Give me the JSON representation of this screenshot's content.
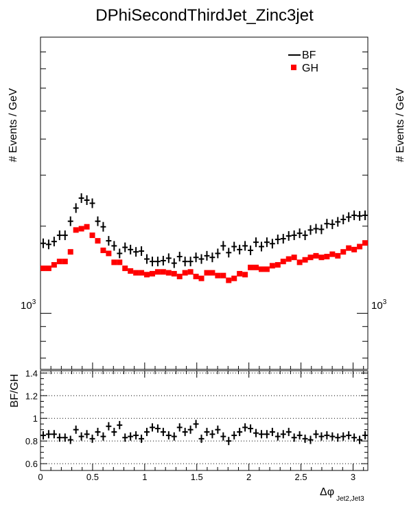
{
  "chart_data": [
    {
      "type": "scatter",
      "title": "DPhiSecondThirdJet_Zinc3jet",
      "ylabel": "# Events / GeV",
      "yscale": "log",
      "ylim": [
        640,
        9000
      ],
      "y_tick_label": "10",
      "y_tick_exp": "3",
      "legend_position": "top-right",
      "legend": [
        {
          "label": "BF",
          "marker": "cross",
          "color": "#000000"
        },
        {
          "label": "GH",
          "marker": "square",
          "color": "#ff0000"
        }
      ],
      "x": [
        0.0262,
        0.0785,
        0.1309,
        0.1833,
        0.2356,
        0.288,
        0.3403,
        0.3927,
        0.4451,
        0.4974,
        0.5498,
        0.6021,
        0.6545,
        0.7069,
        0.7592,
        0.8116,
        0.8639,
        0.9163,
        0.9687,
        1.021,
        1.0734,
        1.1257,
        1.1781,
        1.2305,
        1.2828,
        1.3352,
        1.3875,
        1.4399,
        1.4923,
        1.5446,
        1.597,
        1.6493,
        1.7017,
        1.7541,
        1.8064,
        1.8588,
        1.9111,
        1.9635,
        2.0159,
        2.0682,
        2.1206,
        2.1729,
        2.2253,
        2.2777,
        2.33,
        2.3824,
        2.4347,
        2.4871,
        2.5395,
        2.5918,
        2.6442,
        2.6965,
        2.7489,
        2.8013,
        2.8536,
        2.906,
        2.9583,
        3.0107,
        3.0631,
        3.1154
      ],
      "series": [
        {
          "name": "BF",
          "marker": "cross",
          "color": "#000000",
          "values": [
            1745,
            1730,
            1770,
            1860,
            1860,
            2080,
            2310,
            2500,
            2460,
            2400,
            2080,
            1990,
            1780,
            1710,
            1610,
            1690,
            1660,
            1630,
            1640,
            1540,
            1510,
            1510,
            1520,
            1550,
            1490,
            1570,
            1510,
            1510,
            1560,
            1540,
            1580,
            1560,
            1610,
            1710,
            1620,
            1700,
            1660,
            1710,
            1650,
            1760,
            1700,
            1760,
            1740,
            1800,
            1810,
            1850,
            1860,
            1890,
            1860,
            1940,
            1960,
            1950,
            2040,
            2030,
            2070,
            2110,
            2150,
            2180,
            2170,
            2180
          ]
        },
        {
          "name": "GH",
          "marker": "square",
          "color": "#ff0000",
          "values": [
            1430,
            1430,
            1470,
            1510,
            1510,
            1630,
            1940,
            1960,
            1990,
            1860,
            1780,
            1650,
            1610,
            1500,
            1500,
            1430,
            1400,
            1380,
            1380,
            1360,
            1370,
            1390,
            1390,
            1380,
            1370,
            1340,
            1380,
            1390,
            1340,
            1320,
            1380,
            1380,
            1350,
            1350,
            1300,
            1320,
            1370,
            1360,
            1440,
            1440,
            1420,
            1420,
            1460,
            1470,
            1510,
            1540,
            1560,
            1500,
            1530,
            1560,
            1580,
            1560,
            1570,
            1600,
            1580,
            1630,
            1680,
            1660,
            1700,
            1750
          ]
        }
      ]
    },
    {
      "type": "scatter",
      "ylabel": "BF/GH",
      "xlabel": "Δφ",
      "xlabel_sub": "Jet2,Jet3",
      "xlim": [
        0,
        3.1416
      ],
      "ylim": [
        0.54,
        1.42
      ],
      "y_ticks": [
        "0.6",
        "0.8",
        "1",
        "1.2",
        "1.4"
      ],
      "x_ticks": [
        "0",
        "0.5",
        "1",
        "1.5",
        "2",
        "2.5",
        "3"
      ],
      "grid": "horizontal-dotted",
      "series": [
        {
          "name": "BF/GH",
          "marker": "cross",
          "color": "#000000",
          "values": [
            0.85,
            0.86,
            0.86,
            0.83,
            0.83,
            0.81,
            0.9,
            0.84,
            0.86,
            0.82,
            0.88,
            0.84,
            0.93,
            0.88,
            0.94,
            0.83,
            0.84,
            0.85,
            0.82,
            0.88,
            0.92,
            0.91,
            0.88,
            0.85,
            0.84,
            0.92,
            0.88,
            0.9,
            0.95,
            0.82,
            0.88,
            0.86,
            0.9,
            0.84,
            0.8,
            0.85,
            0.88,
            0.92,
            0.91,
            0.87,
            0.86,
            0.86,
            0.88,
            0.84,
            0.86,
            0.88,
            0.83,
            0.85,
            0.82,
            0.81,
            0.86,
            0.84,
            0.85,
            0.84,
            0.83,
            0.84,
            0.85,
            0.83,
            0.81,
            0.85
          ]
        }
      ]
    }
  ]
}
